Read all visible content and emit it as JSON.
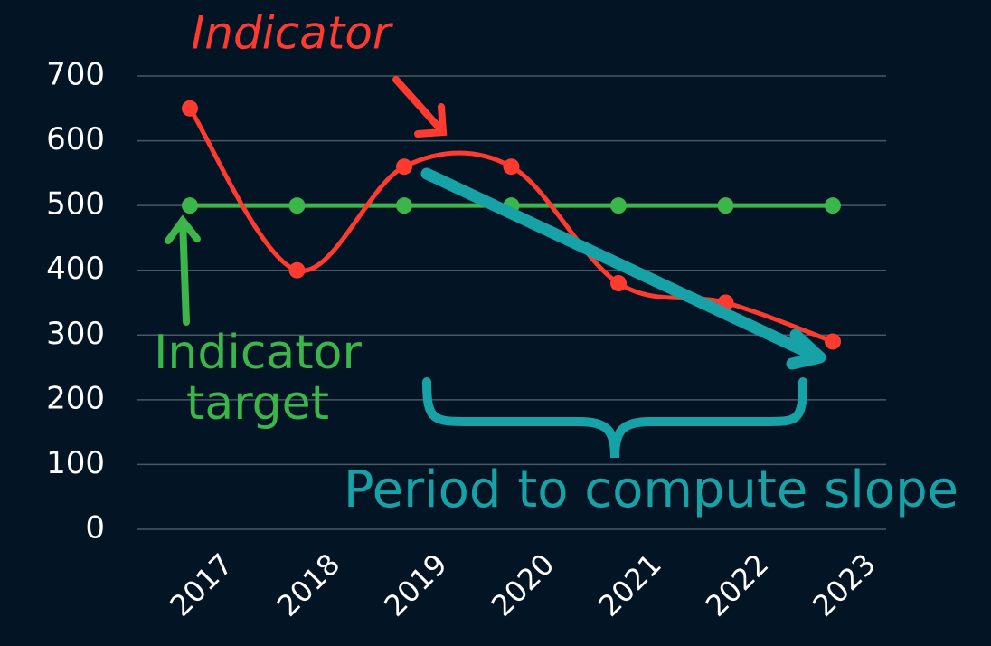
{
  "chart_data": {
    "type": "line",
    "categories": [
      "2017",
      "2018",
      "2019",
      "2020",
      "2021",
      "2022",
      "2023"
    ],
    "series": [
      {
        "name": "Indicator",
        "color": "#ff3b30",
        "values": [
          650,
          400,
          560,
          560,
          380,
          350,
          290
        ]
      },
      {
        "name": "Indicator target",
        "color": "#3cb54a",
        "values": [
          500,
          500,
          500,
          500,
          500,
          500,
          500
        ]
      }
    ],
    "annotations": [
      "Period to compute slope"
    ],
    "ylim": [
      0,
      700
    ],
    "yticks": [
      0,
      100,
      200,
      300,
      400,
      500,
      600,
      700
    ],
    "grid": true
  }
}
